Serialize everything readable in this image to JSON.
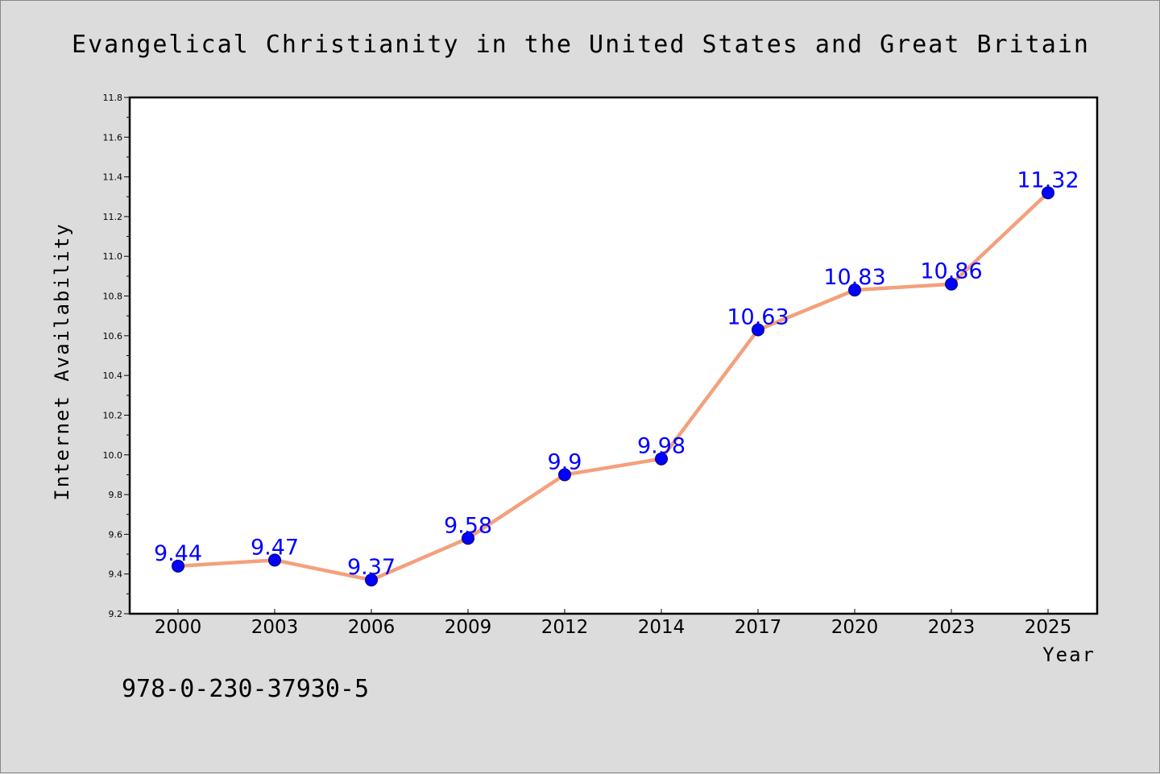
{
  "chart_data": {
    "type": "line",
    "title": "Evangelical Christianity in the United States and Great Britain",
    "xlabel": "Year",
    "ylabel": "Internet Availability",
    "categories": [
      "2000",
      "2003",
      "2006",
      "2009",
      "2012",
      "2014",
      "2017",
      "2020",
      "2023",
      "2025"
    ],
    "series": [
      {
        "values": [
          9.44,
          9.47,
          9.37,
          9.58,
          9.9,
          9.98,
          10.63,
          10.83,
          10.86,
          11.32
        ],
        "labels": [
          "9.44",
          "9.47",
          "9.37",
          "9.58",
          "9.9",
          "9.98",
          "10.63",
          "10.83",
          "10.86",
          "11.32"
        ],
        "line_color": "#f4a07c",
        "marker_color": "#0000ff"
      }
    ],
    "ylim": [
      9.2,
      11.8
    ],
    "yticks": [
      9.2,
      9.4,
      9.6,
      9.8,
      10.0,
      10.2,
      10.4,
      10.6,
      10.8,
      11.0,
      11.2,
      11.4,
      11.6,
      11.8
    ],
    "ytick_labels": [
      "9.2",
      "9.4",
      "9.6",
      "9.8",
      "10.0",
      "10.2",
      "10.4",
      "10.6",
      "10.8",
      "11.0",
      "11.2",
      "11.4",
      "11.6",
      "11.8"
    ],
    "grid": false,
    "legend": "none"
  },
  "footer_text": "978-0-230-37930-5",
  "colors": {
    "background": "#dcdcdc",
    "plot_background": "#ffffff"
  }
}
